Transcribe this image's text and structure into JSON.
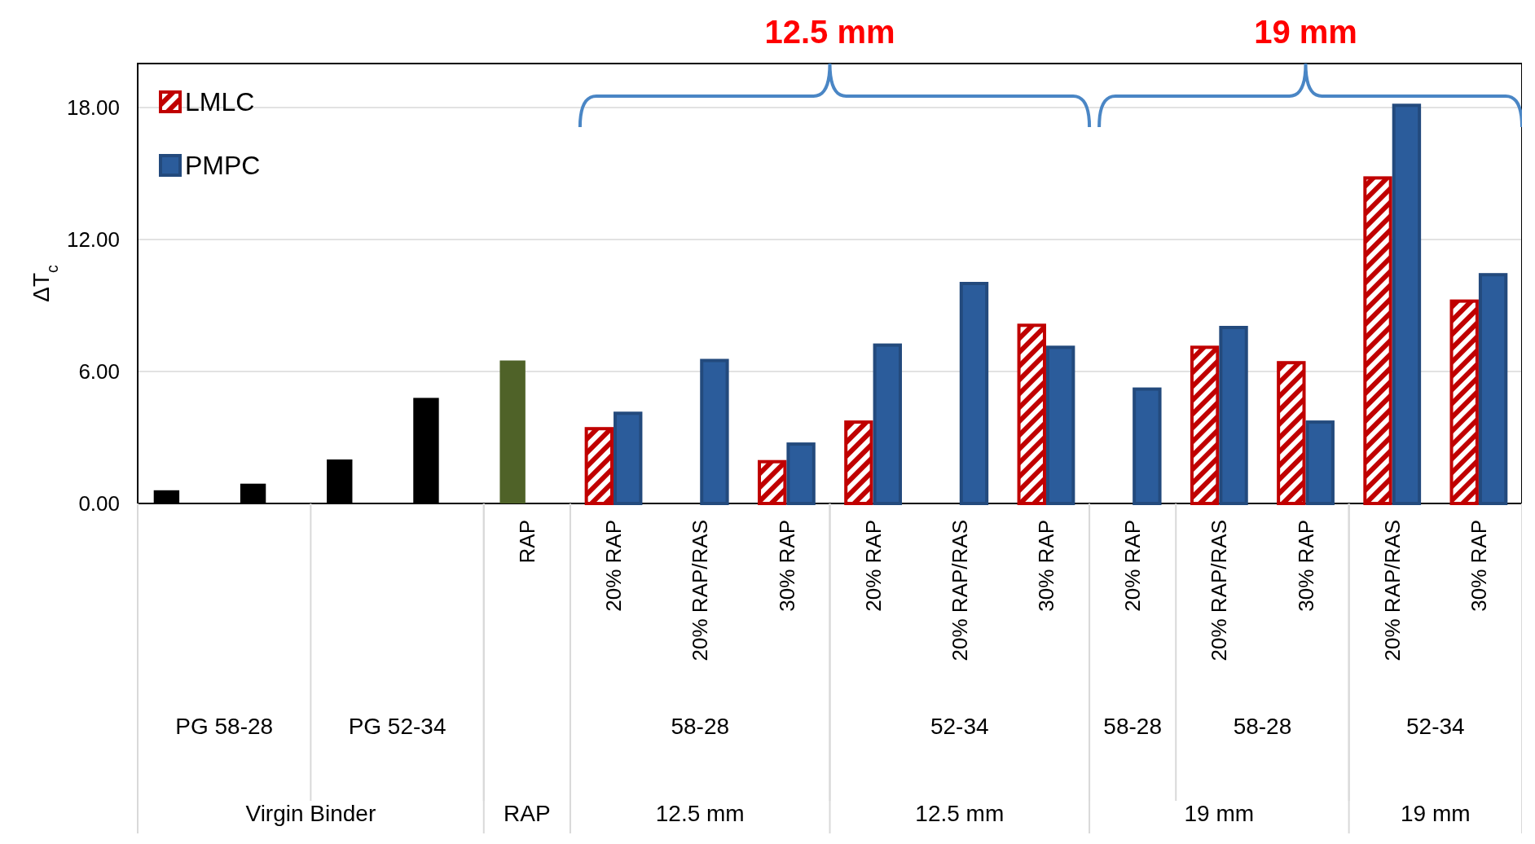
{
  "chart_data": {
    "type": "bar",
    "ylabel": "ΔT$_{c}$",
    "categories": [
      null,
      null,
      null,
      null,
      "RAP",
      "20% RAP",
      "20% RAP/RAS",
      "30% RAP",
      "20% RAP",
      "20% RAP/RAS",
      "30% RAP",
      "20% RAP",
      "20% RAP/RAS",
      "30% RAP",
      "20% RAP/RAS",
      "30% RAP"
    ],
    "series": [
      {
        "name": "LMLC",
        "color": "#c00000",
        "colors": [
          "#000000",
          "#000000",
          "#000000",
          "#000000",
          "#4f6228",
          "#c00000",
          null,
          "#c00000",
          "#c00000",
          null,
          "#c00000",
          null,
          "#c00000",
          "#c00000",
          "#c00000",
          "#c00000"
        ],
        "values": [
          0.6,
          0.9,
          2.0,
          4.8,
          6.5,
          3.4,
          null,
          1.9,
          3.7,
          null,
          8.1,
          null,
          7.1,
          6.4,
          14.8,
          9.2
        ]
      },
      {
        "name": "PMPC",
        "color": "#2b5c9b",
        "values": [
          null,
          null,
          null,
          null,
          null,
          4.1,
          6.5,
          2.7,
          7.2,
          10.0,
          7.1,
          5.2,
          8.0,
          3.7,
          18.1,
          10.4
        ]
      }
    ],
    "ylim": [
      0,
      20
    ],
    "yticks": [
      {
        "value": 0,
        "label": "0.00"
      },
      {
        "value": 6,
        "label": "6.00"
      },
      {
        "value": 12,
        "label": "12.00"
      },
      {
        "value": 18,
        "label": "18.00"
      }
    ],
    "grid": "y",
    "legend": "top left",
    "annotations": [
      "12.5 mm",
      "19 mm",
      "PG 58-28",
      "PG 52-34",
      "58-28",
      "52-34",
      "58-28",
      "58-28",
      "52-34",
      "Virgin Binder",
      "RAP",
      "12.5 mm",
      "12.5 mm",
      "19 mm",
      "19 mm"
    ]
  }
}
